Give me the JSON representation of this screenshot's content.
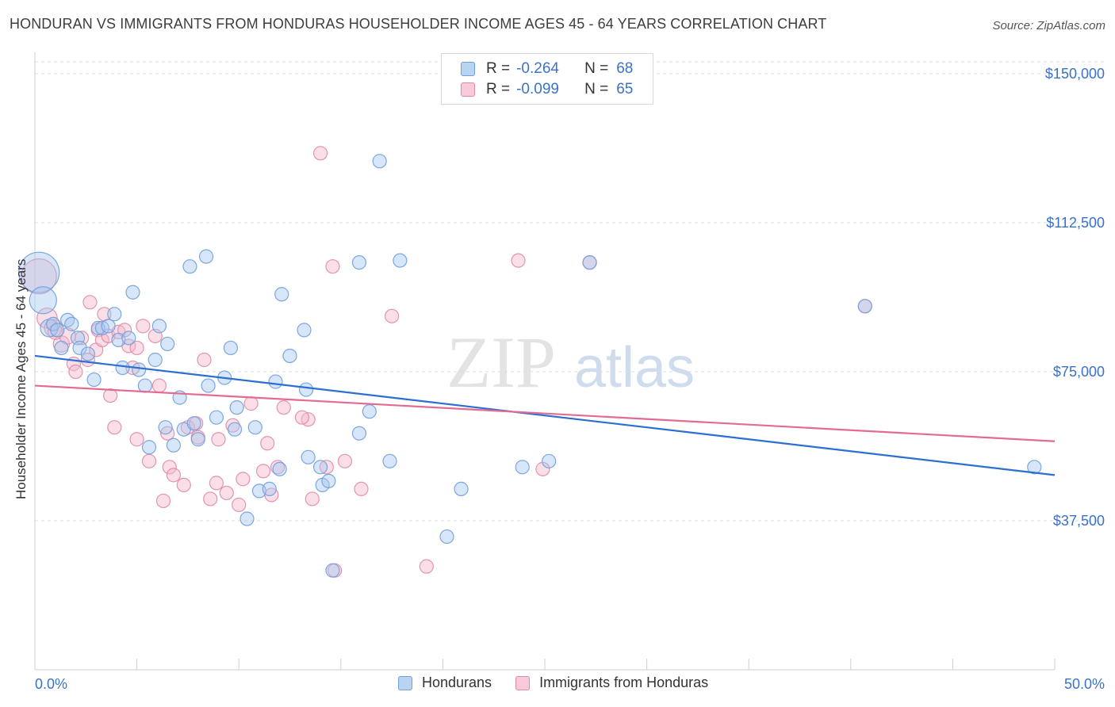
{
  "title": "HONDURAN VS IMMIGRANTS FROM HONDURAS HOUSEHOLDER INCOME AGES 45 - 64 YEARS CORRELATION CHART",
  "source": "Source: ZipAtlas.com",
  "watermark": {
    "zip": "ZIP",
    "atlas": "atlas"
  },
  "legend": {
    "r_label": "R =",
    "n_label": "N =",
    "rows": [
      {
        "r": "-0.264",
        "n": "68"
      },
      {
        "r": "-0.099",
        "n": "65"
      }
    ]
  },
  "bottom_legend": [
    "Hondurans",
    "Immigrants from Honduras"
  ],
  "colors": {
    "blue_fill": "#a7c7ef",
    "blue_stroke": "#6f9fdc",
    "blue_line": "#2b6fd0",
    "pink_fill": "#f5b9cc",
    "pink_stroke": "#e08aa6",
    "pink_line": "#e36b93",
    "tick_text": "#3a72c9",
    "grid": "#dcdcdc"
  },
  "chart_data": {
    "type": "scatter",
    "title": "HONDURAN VS IMMIGRANTS FROM HONDURAS HOUSEHOLDER INCOME AGES 45 - 64 YEARS CORRELATION CHART",
    "xlabel": "",
    "ylabel": "Householder Income Ages 45 - 64 years",
    "xlim": [
      0,
      50
    ],
    "ylim": [
      0,
      153000
    ],
    "x_tick_labels": [
      "0.0%",
      "50.0%"
    ],
    "y_ticks": [
      37500,
      75000,
      112500,
      150000
    ],
    "y_tick_labels": [
      "$37,500",
      "$75,000",
      "$112,500",
      "$150,000"
    ],
    "series": [
      {
        "name": "Hondurans",
        "r": -0.264,
        "n": 68,
        "trend": [
          [
            0,
            79000
          ],
          [
            50,
            49000
          ]
        ],
        "points": [
          [
            0.2,
            100000,
            3
          ],
          [
            0.4,
            93000,
            2
          ],
          [
            0.7,
            86000,
            1.3
          ],
          [
            0.9,
            87000,
            1
          ],
          [
            1.1,
            85500,
            1
          ],
          [
            1.3,
            81000,
            1
          ],
          [
            1.6,
            88000,
            1
          ],
          [
            1.8,
            87000,
            1
          ],
          [
            2.1,
            83500,
            1
          ],
          [
            2.2,
            81000,
            1
          ],
          [
            2.6,
            79500,
            1
          ],
          [
            2.9,
            73000,
            1
          ],
          [
            3.1,
            86000,
            1
          ],
          [
            3.3,
            86000,
            1
          ],
          [
            3.6,
            86500,
            1
          ],
          [
            3.9,
            89500,
            1
          ],
          [
            4.1,
            83000,
            1
          ],
          [
            4.3,
            76000,
            1
          ],
          [
            4.6,
            83500,
            1
          ],
          [
            4.8,
            95000,
            1
          ],
          [
            5.1,
            75500,
            1
          ],
          [
            5.4,
            71500,
            1
          ],
          [
            5.6,
            56000,
            1
          ],
          [
            5.9,
            78000,
            1
          ],
          [
            6.1,
            86500,
            1
          ],
          [
            6.4,
            61000,
            1
          ],
          [
            6.5,
            82000,
            1
          ],
          [
            6.8,
            56500,
            1
          ],
          [
            7.1,
            68500,
            1
          ],
          [
            7.3,
            60500,
            1
          ],
          [
            7.6,
            101500,
            1
          ],
          [
            7.8,
            62000,
            1
          ],
          [
            8.0,
            58000,
            1
          ],
          [
            8.4,
            104000,
            1
          ],
          [
            8.5,
            71500,
            1
          ],
          [
            8.9,
            63500,
            1
          ],
          [
            9.3,
            73500,
            1
          ],
          [
            9.6,
            81000,
            1
          ],
          [
            9.8,
            60500,
            1
          ],
          [
            9.9,
            66000,
            1
          ],
          [
            10.4,
            38000,
            1
          ],
          [
            10.8,
            61000,
            1
          ],
          [
            11.0,
            45000,
            1
          ],
          [
            11.5,
            45500,
            1
          ],
          [
            11.8,
            72500,
            1
          ],
          [
            12.0,
            50500,
            1
          ],
          [
            12.1,
            94500,
            1
          ],
          [
            12.5,
            79000,
            1
          ],
          [
            13.2,
            85500,
            1
          ],
          [
            13.3,
            70500,
            1
          ],
          [
            13.4,
            53500,
            1
          ],
          [
            14.0,
            51000,
            1
          ],
          [
            14.1,
            46500,
            1
          ],
          [
            14.4,
            47500,
            1
          ],
          [
            15.9,
            102500,
            1
          ],
          [
            15.9,
            59500,
            1
          ],
          [
            16.4,
            65000,
            1
          ],
          [
            16.9,
            128000,
            1
          ],
          [
            17.4,
            52500,
            1
          ],
          [
            17.9,
            103000,
            1
          ],
          [
            20.2,
            33500,
            1
          ],
          [
            20.9,
            45500,
            1
          ],
          [
            23.9,
            51000,
            1
          ],
          [
            25.2,
            52500,
            1
          ],
          [
            27.2,
            102500,
            1
          ],
          [
            40.7,
            91500,
            1
          ],
          [
            49.0,
            51000,
            1
          ],
          [
            14.6,
            25000,
            1
          ]
        ]
      },
      {
        "name": "Immigrants from Honduras",
        "r": -0.099,
        "n": 65,
        "trend": [
          [
            0,
            71500
          ],
          [
            50,
            57500
          ]
        ],
        "points": [
          [
            0.2,
            99000,
            2.6
          ],
          [
            0.6,
            88500,
            1.5
          ],
          [
            0.9,
            86000,
            1.3
          ],
          [
            1.3,
            82000,
            1.2
          ],
          [
            1.6,
            84000,
            1.2
          ],
          [
            1.9,
            77000,
            1
          ],
          [
            2.0,
            75000,
            1
          ],
          [
            2.3,
            83500,
            1
          ],
          [
            2.6,
            78000,
            1
          ],
          [
            2.7,
            92500,
            1
          ],
          [
            3.0,
            80500,
            1
          ],
          [
            3.1,
            85500,
            1
          ],
          [
            3.3,
            83000,
            1
          ],
          [
            3.4,
            89500,
            1
          ],
          [
            3.6,
            84000,
            1
          ],
          [
            3.7,
            69000,
            1
          ],
          [
            3.9,
            61000,
            1
          ],
          [
            4.1,
            85000,
            1
          ],
          [
            4.4,
            85500,
            1
          ],
          [
            4.6,
            81500,
            1
          ],
          [
            4.8,
            76000,
            1
          ],
          [
            5.0,
            58000,
            1
          ],
          [
            5.0,
            81000,
            1
          ],
          [
            5.3,
            86500,
            1
          ],
          [
            5.6,
            52500,
            1
          ],
          [
            5.9,
            84000,
            1
          ],
          [
            6.1,
            71500,
            1
          ],
          [
            6.3,
            42500,
            1
          ],
          [
            6.5,
            59500,
            1
          ],
          [
            6.6,
            51000,
            1
          ],
          [
            6.8,
            49000,
            1
          ],
          [
            7.3,
            46500,
            1
          ],
          [
            7.5,
            61000,
            1
          ],
          [
            7.9,
            62000,
            1
          ],
          [
            8.0,
            58500,
            1
          ],
          [
            8.3,
            78000,
            1
          ],
          [
            8.6,
            43000,
            1
          ],
          [
            8.9,
            47000,
            1
          ],
          [
            9.0,
            58000,
            1
          ],
          [
            9.4,
            44500,
            1
          ],
          [
            9.7,
            61500,
            1
          ],
          [
            10.0,
            41500,
            1
          ],
          [
            10.2,
            48000,
            1
          ],
          [
            10.6,
            67000,
            1
          ],
          [
            11.2,
            50000,
            1
          ],
          [
            11.4,
            57000,
            1
          ],
          [
            11.6,
            44000,
            1
          ],
          [
            11.9,
            51000,
            1
          ],
          [
            12.2,
            66000,
            1
          ],
          [
            13.4,
            63000,
            1
          ],
          [
            13.6,
            43000,
            1
          ],
          [
            14.3,
            51000,
            1
          ],
          [
            14.6,
            101500,
            1
          ],
          [
            14.7,
            25000,
            1
          ],
          [
            15.2,
            52500,
            1
          ],
          [
            16.0,
            45500,
            1
          ],
          [
            17.5,
            89000,
            1
          ],
          [
            19.2,
            26000,
            1
          ],
          [
            14.0,
            130000,
            1
          ],
          [
            23.7,
            103000,
            1
          ],
          [
            24.9,
            50500,
            1
          ],
          [
            27.2,
            102500,
            1
          ],
          [
            40.7,
            91500,
            1
          ],
          [
            13.1,
            63500,
            1
          ],
          [
            1.0,
            85000,
            1.1
          ]
        ]
      }
    ]
  }
}
